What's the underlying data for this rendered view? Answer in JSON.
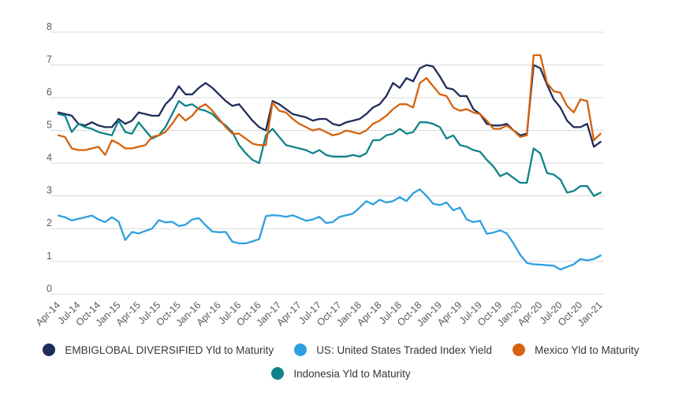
{
  "chart_data": {
    "type": "line",
    "title": "",
    "x_tick_labels": [
      "Apr-14",
      "Jul-14",
      "Oct-14",
      "Jan-15",
      "Apr-15",
      "Jul-15",
      "Oct-15",
      "Jan-16",
      "Apr-16",
      "Jul-16",
      "Oct-16",
      "Jan-17",
      "Apr-17",
      "Jul-17",
      "Oct-17",
      "Jan-18",
      "Apr-18",
      "Jul-18",
      "Oct-18",
      "Jan-19",
      "Apr-19",
      "Jul-19",
      "Oct-19",
      "Jan-20",
      "Apr-20",
      "Jul-20",
      "Oct-20",
      "Jan-21"
    ],
    "x_points_per_tick": 3,
    "n_points": 82,
    "x_frequency": "monthly",
    "y_ticks": [
      0,
      1,
      2,
      3,
      4,
      5,
      6,
      7,
      8
    ],
    "ylim": [
      0,
      8
    ],
    "grid": "horizontal",
    "legend_position": "bottom",
    "series": [
      {
        "name": "EMBIGLOBAL DIVERSIFIED Yld to Maturity",
        "color": "#202c59",
        "values": [
          5.55,
          5.5,
          5.45,
          5.2,
          5.15,
          5.25,
          5.15,
          5.1,
          5.1,
          5.35,
          5.2,
          5.3,
          5.55,
          5.5,
          5.45,
          5.45,
          5.8,
          6.0,
          6.35,
          6.1,
          6.1,
          6.3,
          6.45,
          6.3,
          6.1,
          5.9,
          5.75,
          5.8,
          5.55,
          5.3,
          5.1,
          5.0,
          5.9,
          5.8,
          5.65,
          5.5,
          5.45,
          5.4,
          5.3,
          5.35,
          5.35,
          5.2,
          5.15,
          5.25,
          5.3,
          5.35,
          5.5,
          5.7,
          5.8,
          6.05,
          6.45,
          6.3,
          6.6,
          6.5,
          6.9,
          7.0,
          6.95,
          6.65,
          6.3,
          6.25,
          6.05,
          6.05,
          5.65,
          5.5,
          5.2,
          5.15,
          5.15,
          5.2,
          5.0,
          4.85,
          4.9,
          7.0,
          6.9,
          6.4,
          5.95,
          5.7,
          5.3,
          5.1,
          5.1,
          5.2,
          4.5,
          4.65
        ]
      },
      {
        "name": "US: United States Traded Index Yield",
        "color": "#2e9fe0",
        "values": [
          2.4,
          2.35,
          2.25,
          2.3,
          2.35,
          2.4,
          2.28,
          2.2,
          2.35,
          2.22,
          1.65,
          1.9,
          1.85,
          1.93,
          2.0,
          2.26,
          2.19,
          2.21,
          2.08,
          2.12,
          2.28,
          2.32,
          2.1,
          1.91,
          1.89,
          1.9,
          1.6,
          1.55,
          1.55,
          1.61,
          1.68,
          2.38,
          2.41,
          2.4,
          2.36,
          2.41,
          2.33,
          2.24,
          2.28,
          2.36,
          2.17,
          2.2,
          2.36,
          2.41,
          2.46,
          2.64,
          2.84,
          2.74,
          2.88,
          2.8,
          2.84,
          2.96,
          2.84,
          3.08,
          3.2,
          3.0,
          2.76,
          2.72,
          2.8,
          2.56,
          2.64,
          2.28,
          2.2,
          2.24,
          1.84,
          1.88,
          1.95,
          1.85,
          1.55,
          1.2,
          0.95,
          0.91,
          0.9,
          0.88,
          0.87,
          0.75,
          0.83,
          0.91,
          1.07,
          1.03,
          1.07,
          1.18
        ]
      },
      {
        "name": "Mexico Yld to Maturity",
        "color": "#d5620e",
        "values": [
          4.85,
          4.8,
          4.45,
          4.4,
          4.4,
          4.45,
          4.5,
          4.25,
          4.7,
          4.6,
          4.45,
          4.45,
          4.5,
          4.55,
          4.8,
          4.85,
          4.95,
          5.2,
          5.5,
          5.3,
          5.45,
          5.7,
          5.8,
          5.6,
          5.35,
          5.1,
          4.9,
          4.9,
          4.75,
          4.6,
          4.55,
          4.55,
          5.85,
          5.6,
          5.55,
          5.35,
          5.2,
          5.1,
          5.0,
          5.05,
          4.95,
          4.85,
          4.9,
          5.0,
          4.95,
          4.9,
          5.0,
          5.2,
          5.3,
          5.45,
          5.65,
          5.8,
          5.8,
          5.7,
          6.45,
          6.6,
          6.35,
          6.1,
          6.05,
          5.7,
          5.6,
          5.65,
          5.55,
          5.5,
          5.3,
          5.05,
          5.05,
          5.15,
          5.0,
          4.8,
          4.85,
          7.3,
          7.3,
          6.45,
          6.2,
          6.15,
          5.75,
          5.55,
          5.95,
          5.9,
          4.7,
          4.9
        ]
      },
      {
        "name": "Indonesia Yld to Maturity",
        "color": "#10838a",
        "values": [
          5.5,
          5.45,
          4.95,
          5.2,
          5.1,
          5.05,
          4.95,
          4.9,
          4.85,
          5.3,
          4.95,
          4.9,
          5.25,
          5.0,
          4.75,
          4.85,
          5.1,
          5.5,
          5.9,
          5.75,
          5.8,
          5.65,
          5.6,
          5.5,
          5.3,
          5.15,
          4.95,
          4.55,
          4.3,
          4.1,
          4.0,
          4.85,
          5.05,
          4.8,
          4.55,
          4.5,
          4.45,
          4.4,
          4.3,
          4.4,
          4.25,
          4.2,
          4.2,
          4.2,
          4.25,
          4.2,
          4.3,
          4.7,
          4.7,
          4.85,
          4.9,
          5.05,
          4.9,
          4.95,
          5.25,
          5.25,
          5.2,
          5.1,
          4.75,
          4.85,
          4.55,
          4.5,
          4.4,
          4.35,
          4.1,
          3.9,
          3.6,
          3.7,
          3.55,
          3.4,
          3.4,
          4.45,
          4.3,
          3.7,
          3.65,
          3.5,
          3.1,
          3.15,
          3.3,
          3.3,
          3.0,
          3.1
        ]
      }
    ],
    "legend_rows": [
      [
        0,
        1,
        2
      ],
      [
        3
      ]
    ]
  },
  "colors": {
    "background": "#ffffff",
    "grid": "#d9d9d9",
    "tick_label": "#595959",
    "legend_text": "#33373d"
  }
}
